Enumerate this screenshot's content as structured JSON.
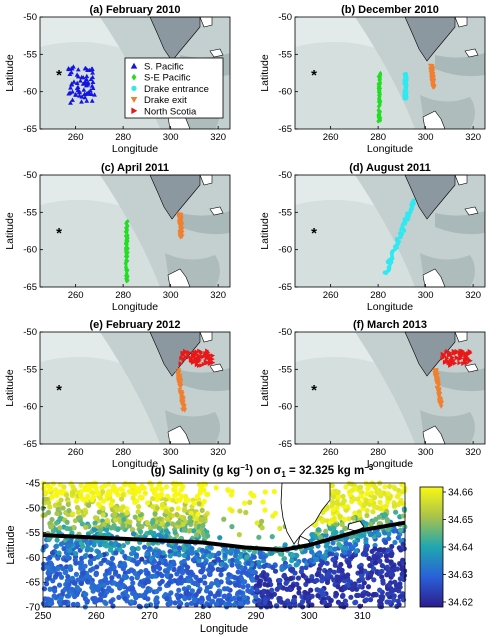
{
  "chart_data": [
    {
      "type": "scatter",
      "title": "(a) February 2010",
      "xlabel": "Longitude",
      "ylabel": "Latitude",
      "xlim": [
        245,
        325
      ],
      "ylim": [
        -65,
        -50
      ],
      "xticks": [
        "260",
        "280",
        "300",
        "320"
      ],
      "yticks": [
        "-50",
        "-55",
        "-60",
        "-65"
      ],
      "legend_position": "center-right",
      "legend": [
        {
          "label": "S. Pacific",
          "color": "#1515e0",
          "marker": "triangle-up"
        },
        {
          "label": "S-E Pacific",
          "color": "#22dd22",
          "marker": "diamond"
        },
        {
          "label": "Drake entrance",
          "color": "#30e8f0",
          "marker": "circle"
        },
        {
          "label": "Drake exit",
          "color": "#f08030",
          "marker": "triangle-down"
        },
        {
          "label": "North Scotia",
          "color": "#e81818",
          "marker": "triangle-right"
        }
      ],
      "series": [
        {
          "name": "S. Pacific",
          "color": "#1515e0",
          "marker": "triangle-up",
          "x_range": [
            257,
            268
          ],
          "y_range": [
            -61.5,
            -56.5
          ]
        }
      ],
      "reference_point": {
        "marker": "asterisk",
        "x": 253,
        "y": -57.8
      }
    },
    {
      "type": "scatter",
      "title": "(b) December 2010",
      "xlabel": "Longitude",
      "ylabel": "Latitude",
      "xlim": [
        245,
        325
      ],
      "ylim": [
        -65,
        -50
      ],
      "xticks": [
        "260",
        "280",
        "300",
        "320"
      ],
      "yticks": [
        "-50",
        "-55",
        "-60",
        "-65"
      ],
      "series": [
        {
          "name": "S-E Pacific",
          "color": "#22dd22",
          "marker": "diamond",
          "x_range": [
            280,
            281
          ],
          "y_range": [
            -64,
            -57.5
          ]
        },
        {
          "name": "Drake entrance",
          "color": "#30e8f0",
          "marker": "circle",
          "x_range": [
            291,
            292
          ],
          "y_range": [
            -61,
            -57.5
          ]
        },
        {
          "name": "Drake exit",
          "color": "#f08030",
          "marker": "triangle-down",
          "x_range": [
            301,
            303
          ],
          "y_range": [
            -59.5,
            -56.5
          ]
        }
      ],
      "reference_point": {
        "marker": "asterisk",
        "x": 253,
        "y": -57.8
      }
    },
    {
      "type": "scatter",
      "title": "(c) April 2011",
      "xlabel": "Longitude",
      "ylabel": "Latitude",
      "xlim": [
        245,
        325
      ],
      "ylim": [
        -65,
        -50
      ],
      "xticks": [
        "260",
        "280",
        "300",
        "320"
      ],
      "yticks": [
        "-50",
        "-55",
        "-60",
        "-65"
      ],
      "series": [
        {
          "name": "S-E Pacific",
          "color": "#22dd22",
          "marker": "diamond",
          "x_range": [
            281,
            282
          ],
          "y_range": [
            -64.2,
            -56.2
          ]
        },
        {
          "name": "Drake exit",
          "color": "#f08030",
          "marker": "triangle-down",
          "x_range": [
            303,
            304
          ],
          "y_range": [
            -58.3,
            -55.2
          ]
        }
      ],
      "reference_point": {
        "marker": "asterisk",
        "x": 253,
        "y": -57.8
      }
    },
    {
      "type": "scatter",
      "title": "(d) August 2011",
      "xlabel": "Longitude",
      "ylabel": "Latitude",
      "xlim": [
        245,
        325
      ],
      "ylim": [
        -65,
        -50
      ],
      "xticks": [
        "260",
        "280",
        "300",
        "320"
      ],
      "yticks": [
        "-50",
        "-55",
        "-60",
        "-65"
      ],
      "series": [
        {
          "name": "Drake entrance",
          "color": "#30e8f0",
          "marker": "circle",
          "x_range": [
            283,
            295
          ],
          "y_range": [
            -63.2,
            -53.5
          ]
        }
      ],
      "reference_point": {
        "marker": "asterisk",
        "x": 253,
        "y": -57.8
      }
    },
    {
      "type": "scatter",
      "title": "(e) February 2012",
      "xlabel": "Longitude",
      "ylabel": "Latitude",
      "xlim": [
        245,
        325
      ],
      "ylim": [
        -65,
        -50
      ],
      "xticks": [
        "260",
        "280",
        "300",
        "320"
      ],
      "yticks": [
        "-50",
        "-55",
        "-60",
        "-65"
      ],
      "series": [
        {
          "name": "North Scotia",
          "color": "#e81818",
          "marker": "triangle-right",
          "x_range": [
            304,
            318
          ],
          "y_range": [
            -54.5,
            -52.5
          ]
        },
        {
          "name": "Drake exit",
          "color": "#f08030",
          "marker": "triangle-down",
          "x_range": [
            301,
            305
          ],
          "y_range": [
            -60.5,
            -55
          ]
        }
      ],
      "reference_point": {
        "marker": "asterisk",
        "x": 253,
        "y": -57.8
      }
    },
    {
      "type": "scatter",
      "title": "(f) March 2013",
      "xlabel": "Longitude",
      "ylabel": "Latitude",
      "xlim": [
        245,
        325
      ],
      "ylim": [
        -65,
        -50
      ],
      "xticks": [
        "260",
        "280",
        "300",
        "320"
      ],
      "yticks": [
        "-50",
        "-55",
        "-60",
        "-65"
      ],
      "series": [
        {
          "name": "North Scotia",
          "color": "#e81818",
          "marker": "triangle-right",
          "x_range": [
            307,
            319
          ],
          "y_range": [
            -54.5,
            -52.5
          ]
        },
        {
          "name": "Drake exit",
          "color": "#f08030",
          "marker": "triangle-down",
          "x_range": [
            302,
            306
          ],
          "y_range": [
            -60,
            -55
          ]
        }
      ],
      "reference_point": {
        "marker": "asterisk",
        "x": 253,
        "y": -57.8
      }
    },
    {
      "type": "scatter",
      "title_prefix": "(g) Salinity (g kg",
      "title_mid": ") on σ",
      "title_sub": "1",
      "title_suffix": " = 32.325 kg m",
      "title_sup1": "−1",
      "title_sup2": "−3",
      "xlabel": "Longitude",
      "ylabel": "Latitude",
      "xlim": [
        250,
        318
      ],
      "ylim": [
        -70,
        -45
      ],
      "xticks": [
        "250",
        "260",
        "270",
        "280",
        "290",
        "300",
        "310"
      ],
      "yticks": [
        "-45",
        "-50",
        "-55",
        "-60",
        "-65",
        "-70"
      ],
      "colorbar": {
        "ticks": [
          "34.66",
          "34.65",
          "34.64",
          "34.63",
          "34.62"
        ],
        "range": [
          34.62,
          34.66
        ]
      },
      "front_line": {
        "color": "#000000",
        "points": [
          [
            250,
            -55.5
          ],
          [
            260,
            -56
          ],
          [
            270,
            -56.5
          ],
          [
            280,
            -57
          ],
          [
            288,
            -58
          ],
          [
            295,
            -58.5
          ],
          [
            300,
            -57.5
          ],
          [
            305,
            -56
          ],
          [
            310,
            -54.5
          ],
          [
            318,
            -53
          ]
        ]
      }
    }
  ]
}
